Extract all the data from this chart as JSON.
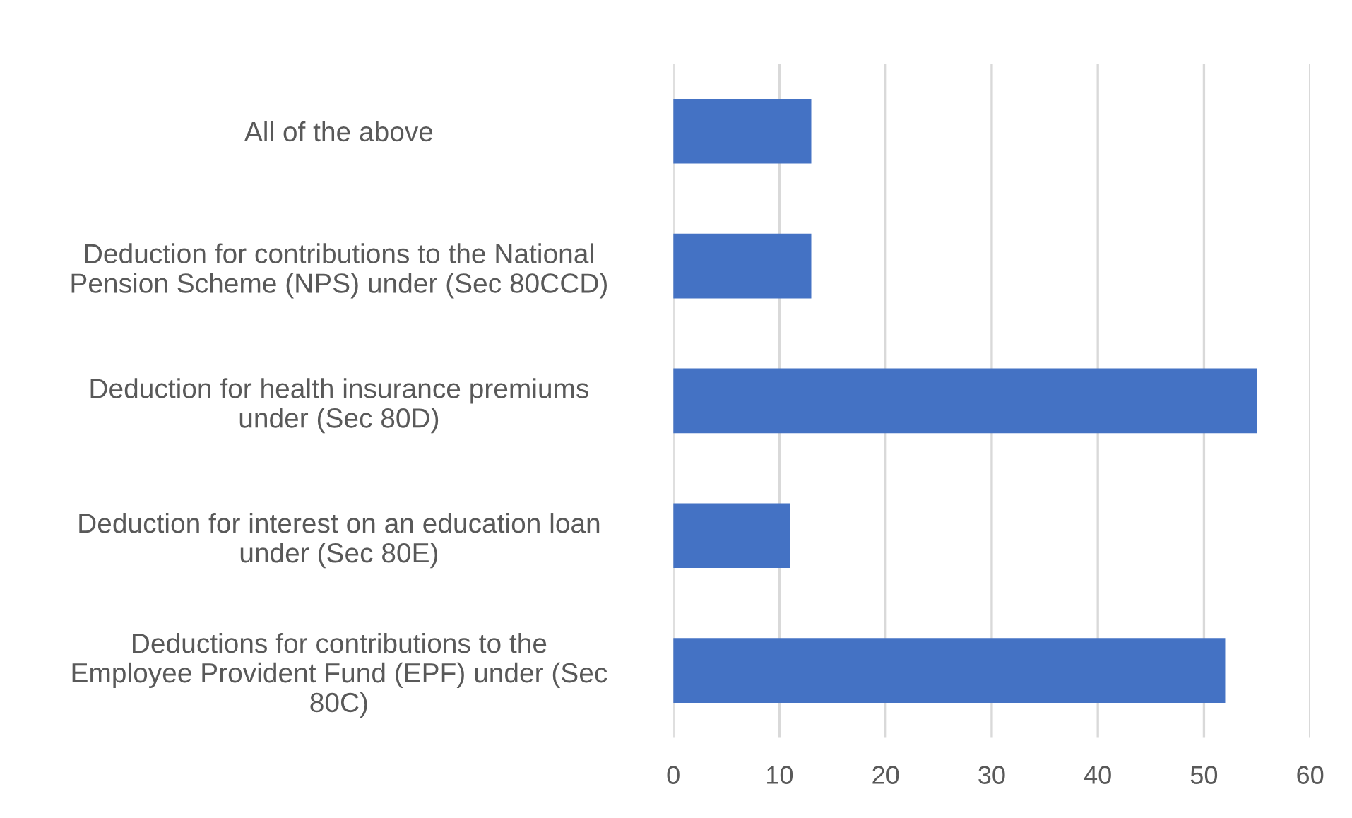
{
  "chart_data": {
    "type": "bar",
    "orientation": "horizontal",
    "categories": [
      "All of the above",
      "Deduction for contributions to the National\nPension Scheme (NPS) under (Sec 80CCD)",
      "Deduction for health insurance premiums\nunder (Sec 80D)",
      "Deduction for interest on an education loan\nunder (Sec 80E)",
      "Deductions for contributions to the\nEmployee Provident Fund (EPF) under (Sec\n80C)"
    ],
    "values": [
      13,
      13,
      55,
      11,
      52
    ],
    "color": "#4472c4",
    "xlim": [
      0,
      60
    ],
    "xticks": [
      0,
      10,
      20,
      30,
      40,
      50,
      60
    ],
    "grid": "x"
  }
}
